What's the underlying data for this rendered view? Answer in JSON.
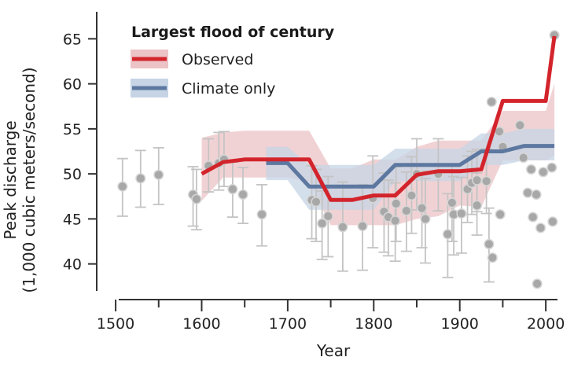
{
  "chart_data": {
    "type": "line",
    "title": "",
    "xlabel": "Year",
    "ylabel_line1": "Peak discharge",
    "ylabel_line2": "(1,000 cubic meters/second)",
    "xlim": [
      1478,
      2020
    ],
    "ylim": [
      37,
      68
    ],
    "xticks": [
      1500,
      1600,
      1700,
      1800,
      1900,
      2000
    ],
    "xticks_minor": [
      1550,
      1650,
      1750,
      1850,
      1950
    ],
    "yticks": [
      40,
      45,
      50,
      55,
      60,
      65
    ],
    "grid": false,
    "legend": {
      "title": "Largest flood of century",
      "placement": "top-left",
      "entries": [
        {
          "label": "Observed",
          "color": "#d3242c",
          "band_color": "#ecc3c6"
        },
        {
          "label": "Climate only",
          "color": "#5d78a0",
          "band_color": "#c6d4e5"
        }
      ]
    },
    "series": [
      {
        "name": "Observed",
        "color": "#d3242c",
        "band_color": "#ecc3c6",
        "x": [
          1600,
          1625,
          1650,
          1675,
          1700,
          1725,
          1750,
          1775,
          1800,
          1825,
          1850,
          1875,
          1900,
          1925,
          1950,
          1975,
          2000,
          2010
        ],
        "y": [
          50.0,
          51.3,
          51.6,
          51.6,
          51.6,
          51.6,
          47.1,
          47.1,
          47.6,
          47.6,
          49.9,
          50.3,
          50.3,
          50.5,
          58.1,
          58.1,
          58.1,
          65.3
        ],
        "lower": [
          47.0,
          49.6,
          49.6,
          49.6,
          49.6,
          49.1,
          44.3,
          44.3,
          44.3,
          44.3,
          45.0,
          45.3,
          46.5,
          46.3,
          51.5,
          51.5,
          51.5,
          52.0
        ],
        "upper": [
          54.0,
          54.6,
          54.8,
          54.8,
          54.8,
          54.8,
          50.6,
          50.6,
          51.6,
          51.6,
          53.0,
          53.7,
          53.7,
          53.7,
          57.0,
          57.0,
          57.0,
          60.0
        ]
      },
      {
        "name": "Climate only",
        "color": "#5d78a0",
        "band_color": "#c6d4e5",
        "x": [
          1675,
          1700,
          1725,
          1750,
          1775,
          1800,
          1825,
          1850,
          1875,
          1900,
          1925,
          1950,
          1975,
          2000,
          2010
        ],
        "y": [
          51.2,
          51.2,
          48.6,
          48.6,
          48.6,
          48.6,
          51.0,
          51.0,
          51.0,
          51.0,
          52.5,
          52.5,
          53.1,
          53.1,
          53.1
        ],
        "lower": [
          49.3,
          49.3,
          46.0,
          46.0,
          46.0,
          46.0,
          49.2,
          49.2,
          49.2,
          49.2,
          51.0,
          51.0,
          51.5,
          51.5,
          51.5
        ],
        "upper": [
          53.0,
          53.0,
          51.0,
          51.0,
          51.0,
          51.0,
          52.8,
          52.8,
          52.8,
          52.8,
          54.5,
          54.5,
          55.0,
          55.0,
          55.0
        ]
      }
    ],
    "flood_points": {
      "color": "#a8a8a8",
      "points": [
        {
          "x": 1508,
          "y": 48.6,
          "lo": 45.3,
          "hi": 51.7
        },
        {
          "x": 1529,
          "y": 49.5,
          "lo": 46.3,
          "hi": 52.6
        },
        {
          "x": 1550,
          "y": 49.9,
          "lo": 46.6,
          "hi": 52.9
        },
        {
          "x": 1590,
          "y": 47.7,
          "lo": 44.2,
          "hi": 50.8
        },
        {
          "x": 1594,
          "y": 47.2,
          "lo": 43.8,
          "hi": 50.5
        },
        {
          "x": 1608,
          "y": 50.9,
          "lo": 48.0,
          "hi": 53.9
        },
        {
          "x": 1620,
          "y": 51.2,
          "lo": 48.2,
          "hi": 54.6
        },
        {
          "x": 1626,
          "y": 51.6,
          "lo": 48.6,
          "hi": 54.7
        },
        {
          "x": 1636,
          "y": 48.3,
          "lo": 45.2,
          "hi": 51.3
        },
        {
          "x": 1648,
          "y": 47.7,
          "lo": 44.5,
          "hi": 50.7
        },
        {
          "x": 1670,
          "y": 45.5,
          "lo": 42.0,
          "hi": 48.8
        },
        {
          "x": 1728,
          "y": 47.1,
          "lo": 42.8,
          "hi": 50.9
        },
        {
          "x": 1733,
          "y": 46.9,
          "lo": 42.5,
          "hi": 50.5
        },
        {
          "x": 1740,
          "y": 44.5,
          "lo": 40.5,
          "hi": 48.1
        },
        {
          "x": 1747,
          "y": 45.3,
          "lo": 40.8,
          "hi": 49.7
        },
        {
          "x": 1764,
          "y": 44.1,
          "lo": 39.2,
          "hi": 49.1
        },
        {
          "x": 1787,
          "y": 44.2,
          "lo": 39.3,
          "hi": 48.8
        },
        {
          "x": 1799,
          "y": 47.3,
          "lo": 41.8,
          "hi": 52.0
        },
        {
          "x": 1812,
          "y": 45.8,
          "lo": 41.3,
          "hi": 50.1
        },
        {
          "x": 1817,
          "y": 45.2,
          "lo": 40.9,
          "hi": 49.3
        },
        {
          "x": 1825,
          "y": 44.8,
          "lo": 40.3,
          "hi": 49.0
        },
        {
          "x": 1826,
          "y": 46.7,
          "lo": 42.5,
          "hi": 50.8
        },
        {
          "x": 1838,
          "y": 45.9,
          "lo": 41.4,
          "hi": 50.2
        },
        {
          "x": 1844,
          "y": 47.6,
          "lo": 43.4,
          "hi": 51.9
        },
        {
          "x": 1850,
          "y": 50.0,
          "lo": 46.0,
          "hi": 53.9
        },
        {
          "x": 1856,
          "y": 46.2,
          "lo": 41.8,
          "hi": 50.3
        },
        {
          "x": 1860,
          "y": 45.0,
          "lo": 40.1,
          "hi": 49.5
        },
        {
          "x": 1875,
          "y": 50.0,
          "lo": 45.9,
          "hi": 53.9
        },
        {
          "x": 1886,
          "y": 43.3,
          "lo": 38.5,
          "hi": 47.8
        },
        {
          "x": 1891,
          "y": 46.8,
          "lo": 42.5,
          "hi": 51.0
        },
        {
          "x": 1893,
          "y": 45.5,
          "lo": 41.0,
          "hi": 49.7
        },
        {
          "x": 1902,
          "y": 45.6,
          "lo": 41.2,
          "hi": 49.6
        },
        {
          "x": 1909,
          "y": 48.3,
          "lo": 44.6,
          "hi": 52.0
        },
        {
          "x": 1914,
          "y": 49.0,
          "lo": 45.5,
          "hi": 52.5
        },
        {
          "x": 1920,
          "y": 49.3,
          "lo": 45.8,
          "hi": 52.7
        },
        {
          "x": 1920,
          "y": 46.5,
          "lo": 43.2,
          "hi": 50.1
        },
        {
          "x": 1931,
          "y": 49.2,
          "lo": 45.6,
          "hi": 52.8
        },
        {
          "x": 1934,
          "y": 42.2,
          "lo": 38.0,
          "hi": 46.2
        },
        {
          "x": 1937,
          "y": 58.0
        },
        {
          "x": 1938,
          "y": 40.7
        },
        {
          "x": 1946,
          "y": 54.7
        },
        {
          "x": 1947,
          "y": 45.5
        },
        {
          "x": 1950,
          "y": 53.0
        },
        {
          "x": 1970,
          "y": 55.4
        },
        {
          "x": 1974,
          "y": 51.8
        },
        {
          "x": 1979,
          "y": 47.9
        },
        {
          "x": 1983,
          "y": 50.5
        },
        {
          "x": 1985,
          "y": 45.2
        },
        {
          "x": 1989,
          "y": 47.7
        },
        {
          "x": 1990,
          "y": 37.8
        },
        {
          "x": 1994,
          "y": 44.0
        },
        {
          "x": 1997,
          "y": 50.2
        },
        {
          "x": 2007,
          "y": 50.7
        },
        {
          "x": 2008,
          "y": 44.7
        },
        {
          "x": 2010,
          "y": 65.4
        }
      ]
    }
  }
}
